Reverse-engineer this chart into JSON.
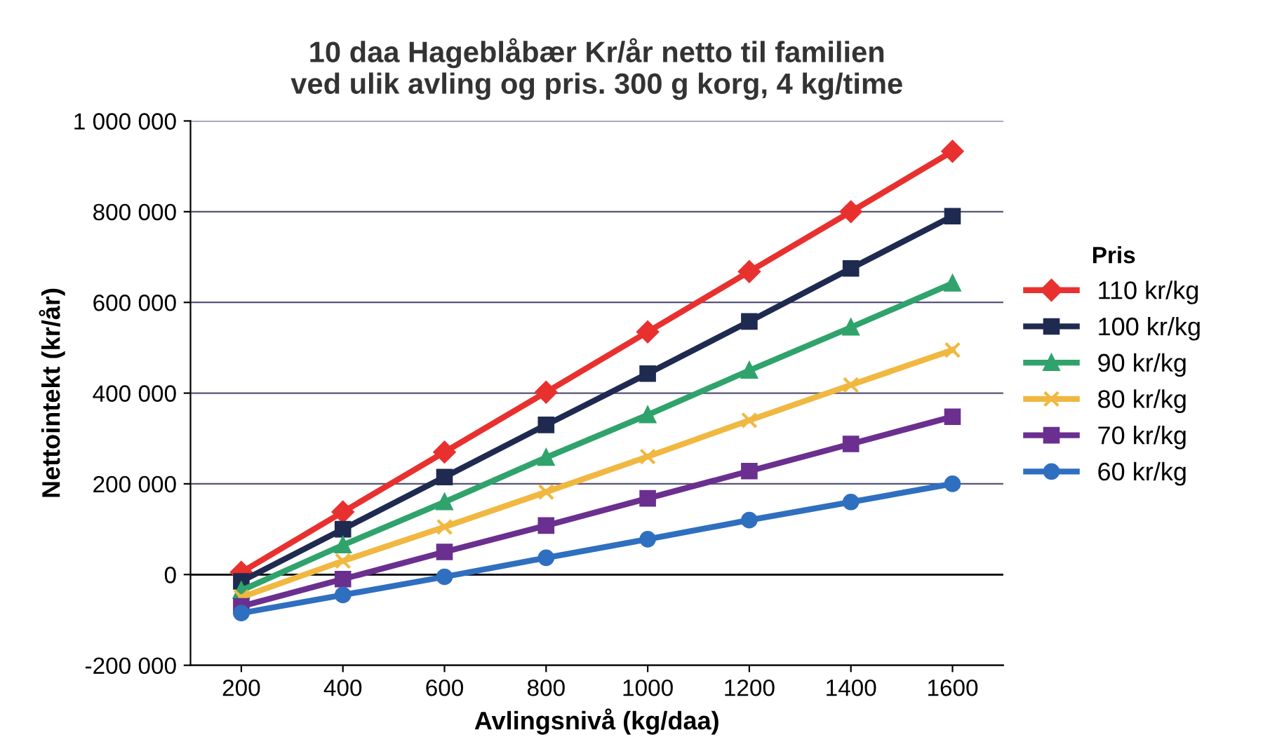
{
  "chart_data": {
    "type": "line",
    "title": "10 daa Hageblåbær Kr/år netto til familien\nved ulik avling og pris. 300 g korg, 4 kg/time",
    "xlabel": "Avlingsnivå (kg/daa)",
    "ylabel": "Nettointekt (kr/år)",
    "legend_title": "Pris",
    "legend": "right",
    "x": [
      200,
      400,
      600,
      800,
      1000,
      1200,
      1400,
      1600
    ],
    "series": [
      {
        "name": "110 kr/kg",
        "color": "#e8312f",
        "marker": "diamond",
        "values": [
          5000,
          138000,
          270000,
          402000,
          535000,
          668000,
          800000,
          933000
        ]
      },
      {
        "name": "100 kr/kg",
        "color": "#1f2a50",
        "marker": "square",
        "values": [
          -15000,
          100000,
          215000,
          330000,
          443000,
          558000,
          675000,
          790000
        ]
      },
      {
        "name": "90 kr/kg",
        "color": "#2fa36b",
        "marker": "triangle",
        "values": [
          -35000,
          65000,
          160000,
          258000,
          352000,
          450000,
          545000,
          642000
        ]
      },
      {
        "name": "80 kr/kg",
        "color": "#f0b840",
        "marker": "cross",
        "values": [
          -50000,
          30000,
          105000,
          182000,
          260000,
          340000,
          418000,
          495000
        ]
      },
      {
        "name": "70 kr/kg",
        "color": "#6a2f8f",
        "marker": "square",
        "values": [
          -70000,
          -10000,
          50000,
          108000,
          168000,
          228000,
          288000,
          348000
        ]
      },
      {
        "name": "60 kr/kg",
        "color": "#2f6fc0",
        "marker": "circle",
        "values": [
          -85000,
          -45000,
          -5000,
          37000,
          78000,
          120000,
          160000,
          200000
        ]
      }
    ],
    "xlim": [
      100,
      1700
    ],
    "xticks": [
      200,
      400,
      600,
      800,
      1000,
      1200,
      1400,
      1600
    ],
    "ylim": [
      -200000,
      1000000
    ],
    "yticks": [
      {
        "value": -200000,
        "label": "-200 000"
      },
      0,
      {
        "value": 200000,
        "label": "200 000"
      },
      {
        "value": 400000,
        "label": "400 000"
      },
      {
        "value": 600000,
        "label": "600 000"
      },
      {
        "value": 800000,
        "label": "800 000"
      },
      {
        "value": 1000000,
        "label": "1 000 000"
      }
    ],
    "grid": "y",
    "line_style": "solid"
  }
}
